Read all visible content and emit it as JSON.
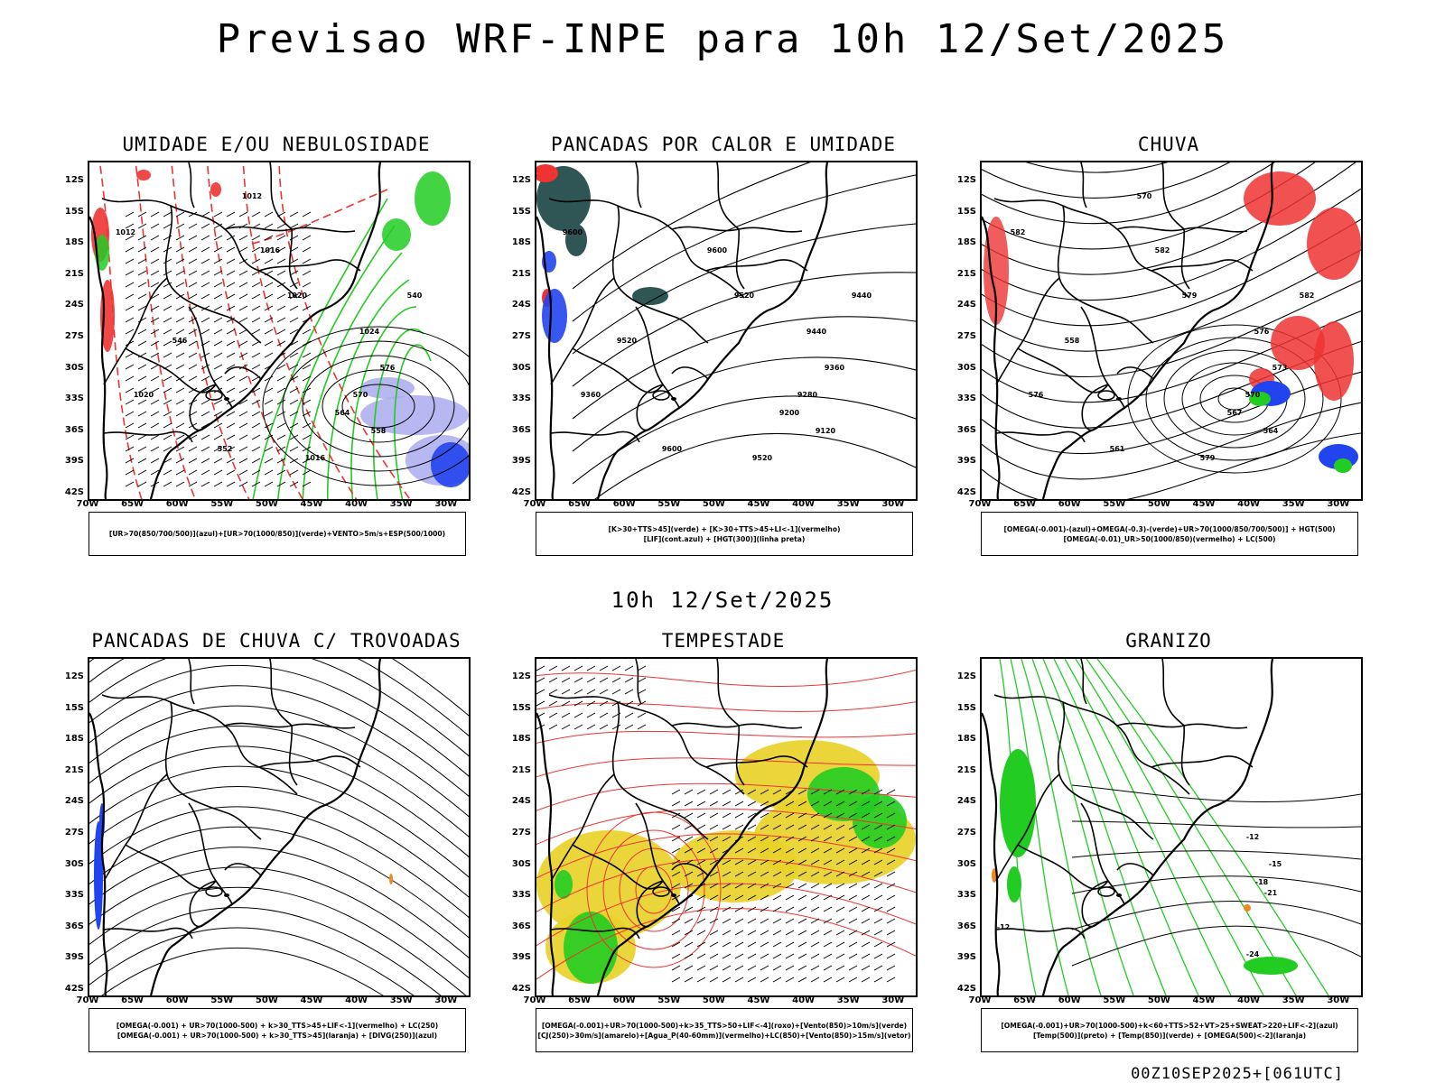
{
  "header": {
    "title": "Previsao WRF-INPE  para 10h 12/Set/2025"
  },
  "middle_time": "10h 12/Set/2025",
  "footer_stamp": "00Z10SEP2025+[061UTC]",
  "axes": {
    "lat_labels": [
      "12S",
      "15S",
      "18S",
      "21S",
      "24S",
      "27S",
      "30S",
      "33S",
      "36S",
      "39S",
      "42S"
    ],
    "lon_labels": [
      "70W",
      "65W",
      "60W",
      "55W",
      "50W",
      "45W",
      "40W",
      "35W",
      "30W"
    ]
  },
  "colors": {
    "humidity_red": "#ee3333",
    "humidity_green": "#22cc22",
    "blue": "#2244ee",
    "lavender": "#aaaaee",
    "dark_teal": "#2f5555",
    "yellow": "#e8d22a",
    "orange": "#ee8822"
  },
  "panels": [
    {
      "title": "UMIDADE E/OU NEBULOSIDADE",
      "legend": [
        "[UR>70(850/700/500)](azul)+[UR>70(1000/850)](verde)+VENTO>5m/s+ESP(500/1000)"
      ],
      "contour_labels": [
        "1012",
        "1016",
        "1020",
        "1024",
        "576",
        "570",
        "564",
        "558",
        "552",
        "546",
        "540",
        "1020",
        "1016",
        "1012"
      ]
    },
    {
      "title": "PANCADAS POR CALOR E UMIDADE",
      "legend": [
        "[K>30+TTS>45](verde) + [K>30+TTS>45+LI<-1](vermelho)",
        "[LIF](cont.azul) + [HGT(300)](linha preta)"
      ],
      "contour_labels": [
        "9600",
        "9600",
        "9520",
        "9440",
        "9360",
        "9280",
        "9200",
        "9120",
        "9600",
        "9520",
        "9440",
        "9360",
        "9520"
      ]
    },
    {
      "title": "CHUVA",
      "legend": [
        "[OMEGA(-0.001)-(azul)+OMEGA(-0.3)-(verde)+UR>70(1000/850/700/500)] + HGT(500)",
        "[OMEGA(-0.01)_UR>50(1000/850)(vermelho) + LC(500)"
      ],
      "contour_labels": [
        "582",
        "582",
        "579",
        "576",
        "573",
        "570",
        "567",
        "564",
        "561",
        "558",
        "582",
        "576",
        "579",
        "570"
      ]
    },
    {
      "title": "PANCADAS DE CHUVA C/ TROVOADAS",
      "legend": [
        "[OMEGA(-0.001) + UR>70(1000-500) + k>30_TTS>45+LIF<-1](vermelho) + LC(250)",
        "[OMEGA(-0.001) + UR>70(1000-500) + k>30_TTS>45](laranja) + [DIVG(250)](azul)"
      ],
      "contour_labels": []
    },
    {
      "title": "TEMPESTADE",
      "legend": [
        "[OMEGA(-0.001)+UR>70(1000-500)+k>35_TTS>50+LIF<-4](roxo)+[Vento(850)>10m/s](verde)",
        "[CJ(250)>30m/s](amarelo)+[Agua_P(40-60mm)](vermelho)+LC(850)+[Vento(850)>15m/s](vetor)"
      ],
      "contour_labels": []
    },
    {
      "title": "GRANIZO",
      "legend": [
        "[OMEGA(-0.001)+UR>70(1000-500)+k<60+TTS>52+VT>25+SWEAT>220+LIF<-2](azul)",
        "[Temp(500)](preto) + [Temp(850)](verde) + [OMEGA(500)<-2](laranja)"
      ],
      "contour_labels": [
        "-12",
        "-15",
        "-18",
        "-21",
        "-24",
        "-12"
      ]
    }
  ]
}
